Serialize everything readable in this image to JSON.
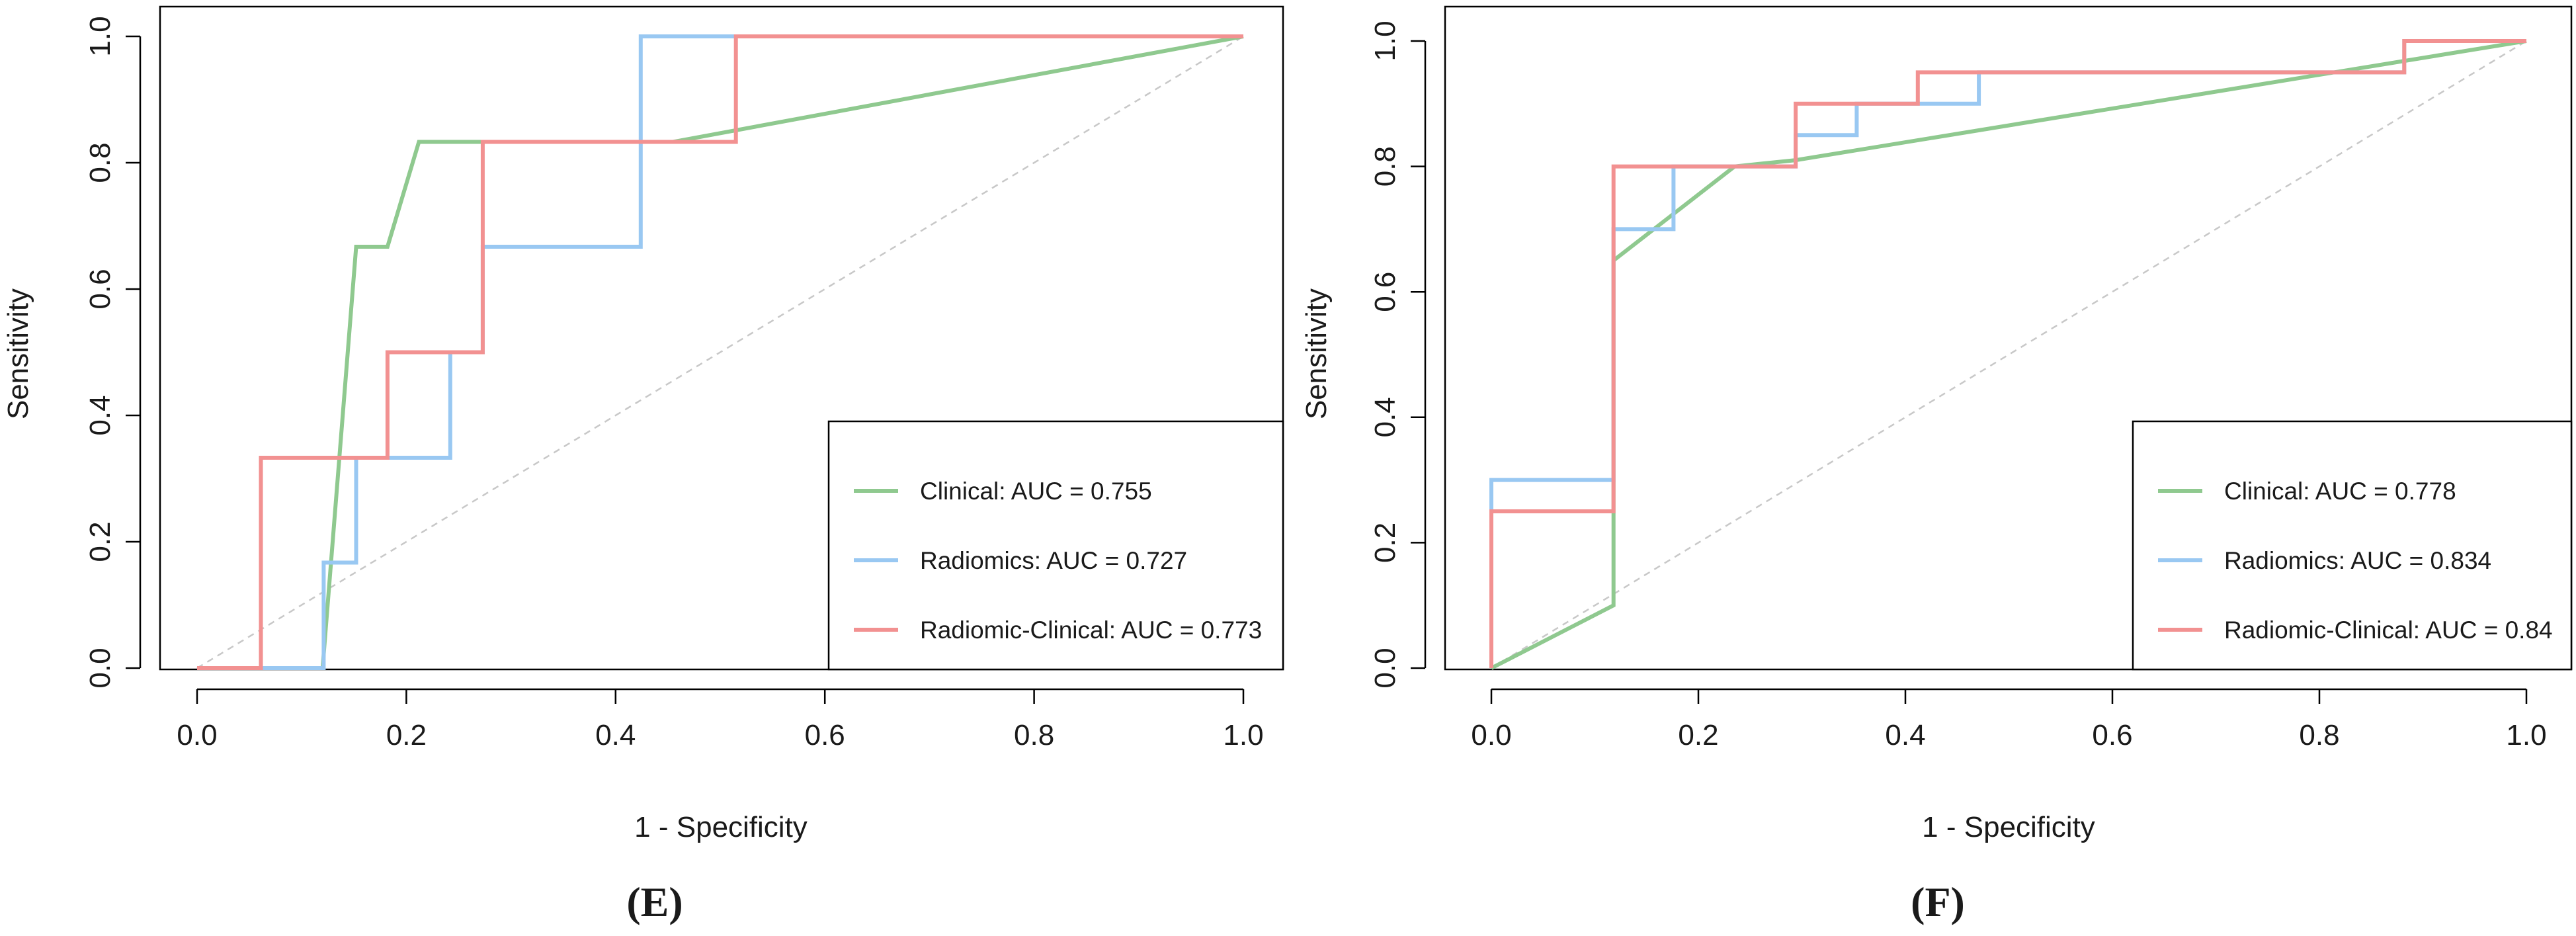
{
  "chart_data": [
    {
      "type": "line",
      "panel_label": "(E)",
      "xlabel": "1 - Specificity",
      "ylabel": "Sensitivity",
      "xlim": [
        0,
        1
      ],
      "ylim": [
        0,
        1
      ],
      "xticks": [
        "0.0",
        "0.2",
        "0.4",
        "0.6",
        "0.8",
        "1.0"
      ],
      "yticks": [
        "0.0",
        "0.2",
        "0.4",
        "0.6",
        "0.8",
        "1.0"
      ],
      "diagonal": true,
      "legend_position": "bottom-right",
      "series": [
        {
          "name": "Clinical: AUC = 0.755",
          "color": "#8fc98f",
          "points": [
            [
              0,
              0
            ],
            [
              0.12,
              0
            ],
            [
              0.152,
              0.667
            ],
            [
              0.182,
              0.667
            ],
            [
              0.212,
              0.833
            ],
            [
              0.455,
              0.833
            ],
            [
              1,
              1
            ]
          ]
        },
        {
          "name": "Radiomics: AUC = 0.727",
          "color": "#99c8f2",
          "points": [
            [
              0,
              0
            ],
            [
              0.121,
              0
            ],
            [
              0.121,
              0.167
            ],
            [
              0.152,
              0.167
            ],
            [
              0.152,
              0.333
            ],
            [
              0.242,
              0.333
            ],
            [
              0.242,
              0.5
            ],
            [
              0.273,
              0.5
            ],
            [
              0.273,
              0.667
            ],
            [
              0.424,
              0.667
            ],
            [
              0.424,
              1
            ],
            [
              1,
              1
            ]
          ]
        },
        {
          "name": "Radiomic-Clinical: AUC = 0.773",
          "color": "#f29191",
          "points": [
            [
              0,
              0
            ],
            [
              0.061,
              0
            ],
            [
              0.061,
              0.333
            ],
            [
              0.182,
              0.333
            ],
            [
              0.182,
              0.5
            ],
            [
              0.273,
              0.5
            ],
            [
              0.273,
              0.833
            ],
            [
              0.515,
              0.833
            ],
            [
              0.515,
              1
            ],
            [
              1,
              1
            ]
          ]
        }
      ]
    },
    {
      "type": "line",
      "panel_label": "(F)",
      "xlabel": "1 - Specificity",
      "ylabel": "Sensitivity",
      "xlim": [
        0,
        1
      ],
      "ylim": [
        0,
        1
      ],
      "xticks": [
        "0.0",
        "0.2",
        "0.4",
        "0.6",
        "0.8",
        "1.0"
      ],
      "yticks": [
        "0.0",
        "0.2",
        "0.4",
        "0.6",
        "0.8",
        "1.0"
      ],
      "diagonal": true,
      "legend_position": "bottom-right",
      "series": [
        {
          "name": "Clinical: AUC = 0.778",
          "color": "#8fc98f",
          "points": [
            [
              0,
              0
            ],
            [
              0.118,
              0.1
            ],
            [
              0.118,
              0.65
            ],
            [
              0.235,
              0.8
            ],
            [
              0.294,
              0.81
            ],
            [
              1,
              1
            ]
          ]
        },
        {
          "name": "Radiomics: AUC = 0.834",
          "color": "#99c8f2",
          "points": [
            [
              0,
              0
            ],
            [
              0,
              0.3
            ],
            [
              0.118,
              0.3
            ],
            [
              0.118,
              0.7
            ],
            [
              0.176,
              0.7
            ],
            [
              0.176,
              0.8
            ],
            [
              0.294,
              0.8
            ],
            [
              0.294,
              0.85
            ],
            [
              0.353,
              0.85
            ],
            [
              0.353,
              0.9
            ],
            [
              0.471,
              0.9
            ],
            [
              0.471,
              0.95
            ],
            [
              0.882,
              0.95
            ],
            [
              0.882,
              1
            ],
            [
              1,
              1
            ]
          ]
        },
        {
          "name": "Radiomic-Clinical: AUC = 0.84",
          "color": "#f29191",
          "points": [
            [
              0,
              0
            ],
            [
              0,
              0.25
            ],
            [
              0.118,
              0.25
            ],
            [
              0.118,
              0.8
            ],
            [
              0.294,
              0.8
            ],
            [
              0.294,
              0.9
            ],
            [
              0.412,
              0.9
            ],
            [
              0.412,
              0.95
            ],
            [
              0.882,
              0.95
            ],
            [
              0.882,
              1
            ],
            [
              1,
              1
            ]
          ]
        }
      ]
    }
  ]
}
